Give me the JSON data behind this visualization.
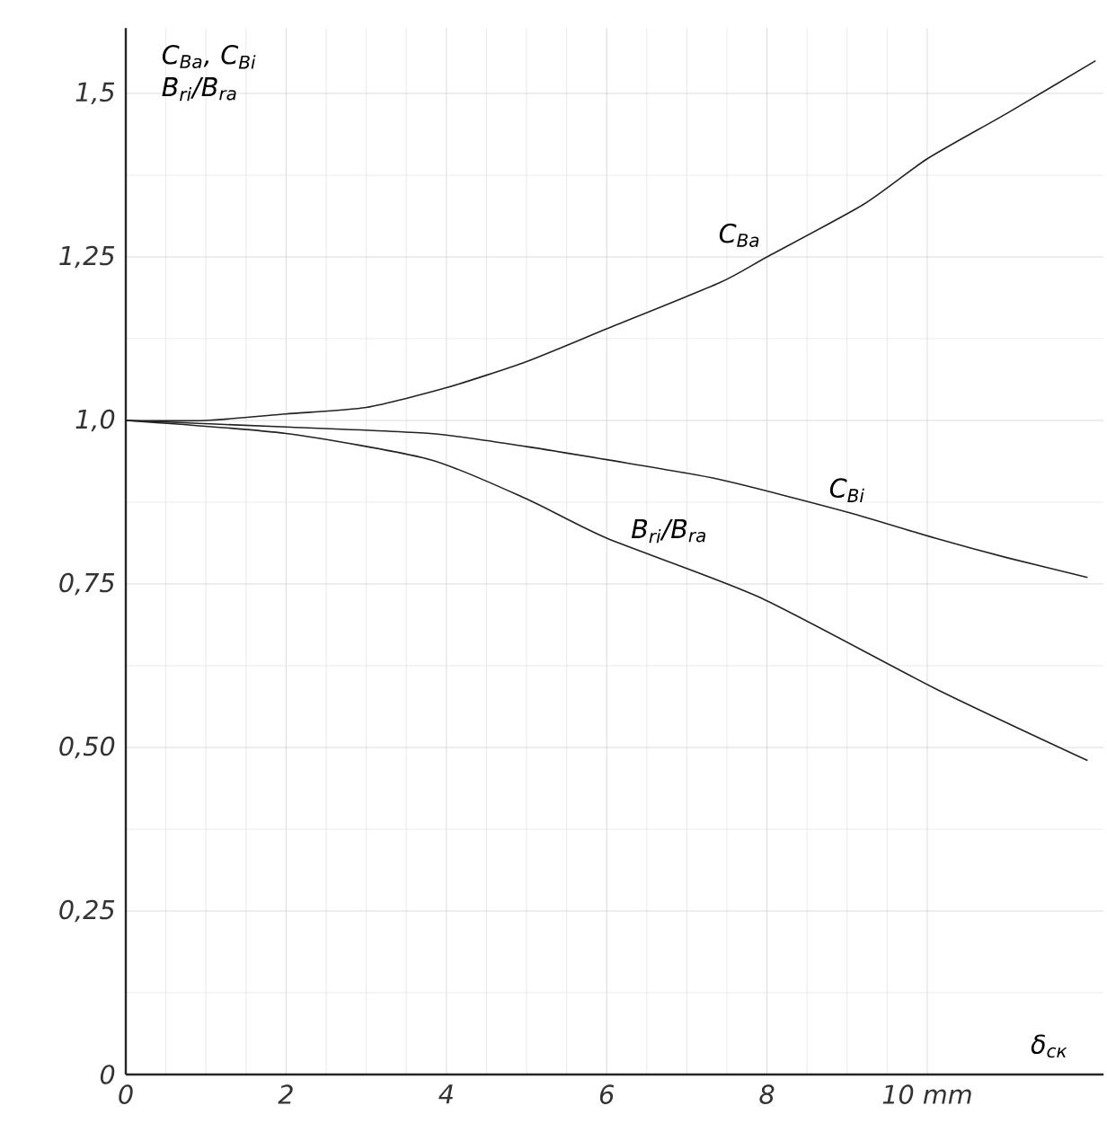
{
  "chart_data": {
    "type": "line",
    "ylabel": "C$_{Ba}$, C$_{Bi}$ B$_{ri}$/B$_{ra}$",
    "xlabel": "δ$_{ск}$",
    "xlim": [
      0,
      12.2
    ],
    "ylim": [
      0,
      1.6
    ],
    "xticks": [
      0,
      2,
      4,
      6,
      8,
      {
        "value": 10,
        "label": "10 mm"
      }
    ],
    "yticks": [
      {
        "value": 0,
        "label": "0"
      },
      {
        "value": 0.25,
        "label": "0,25"
      },
      {
        "value": 0.5,
        "label": "0,50"
      },
      {
        "value": 0.75,
        "label": "0,75"
      },
      {
        "value": 1.0,
        "label": "1,0"
      },
      {
        "value": 1.25,
        "label": "1,25"
      },
      {
        "value": 1.5,
        "label": "1,5"
      }
    ],
    "grid": true,
    "legend": false,
    "marker": "none",
    "line_style": "solid",
    "series": [
      {
        "name": "C$_{Ba}$",
        "color": "#222222",
        "x": [
          0,
          1,
          2,
          3,
          4,
          5,
          6,
          7.4,
          8,
          9.2,
          10,
          11,
          12.1
        ],
        "values": [
          1.0,
          1.0,
          1.01,
          1.02,
          1.05,
          1.09,
          1.14,
          1.21,
          1.25,
          1.33,
          1.4,
          1.47,
          1.55
        ]
      },
      {
        "name": "C$_{Bi}$",
        "color": "#222222",
        "x": [
          0,
          2,
          3.8,
          5,
          6,
          7.4,
          9,
          10.1,
          11,
          12
        ],
        "values": [
          1.0,
          0.99,
          0.98,
          0.96,
          0.94,
          0.91,
          0.86,
          0.82,
          0.79,
          0.76
        ]
      },
      {
        "name": "B$_{ri}$/B$_{ra}$",
        "color": "#222222",
        "x": [
          0,
          2,
          3.8,
          5,
          6,
          7.9,
          10.1,
          12
        ],
        "values": [
          1.0,
          0.98,
          0.94,
          0.88,
          0.82,
          0.73,
          0.59,
          0.48
        ]
      }
    ]
  }
}
